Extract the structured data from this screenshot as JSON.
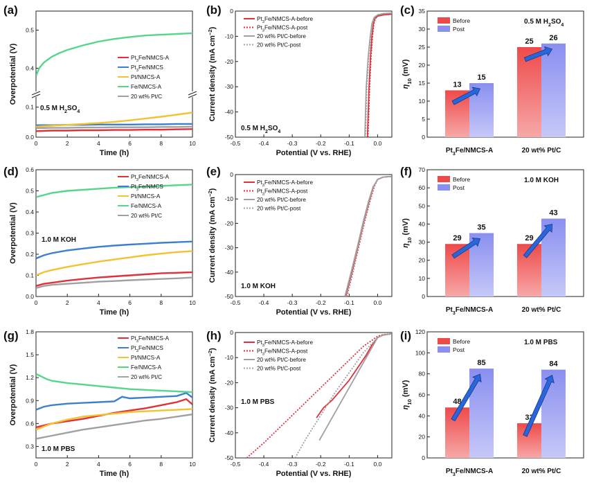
{
  "chart_data": [
    {
      "panel": "(a)",
      "type": "line",
      "xlabel": "Time (h)",
      "ylabel": "Overpotential (V)",
      "xlim": [
        0,
        10
      ],
      "xticks": [
        0,
        2,
        4,
        6,
        8,
        10
      ],
      "ylim": [
        0,
        0.55
      ],
      "yticks": [
        0.0,
        0.1,
        0.4,
        0.5
      ],
      "axis_break": "between 0.1 and 0.4",
      "condition": "0.5 M H2SO4",
      "series": [
        {
          "name": "Pt3Fe/NMCS-A",
          "color": "#e0303a",
          "x": [
            0,
            1,
            2,
            3,
            4,
            5,
            6,
            7,
            8,
            9,
            10
          ],
          "y": [
            0.02,
            0.022,
            0.022,
            0.023,
            0.023,
            0.024,
            0.024,
            0.025,
            0.025,
            0.026,
            0.027
          ]
        },
        {
          "name": "Pt3Fe/NMCS",
          "color": "#3a7fd0",
          "x": [
            0,
            1,
            2,
            3,
            4,
            5,
            6,
            7,
            8,
            9,
            10
          ],
          "y": [
            0.04,
            0.04,
            0.041,
            0.041,
            0.042,
            0.042,
            0.042,
            0.043,
            0.043,
            0.044,
            0.044
          ]
        },
        {
          "name": "Pt/NMCS-A",
          "color": "#f2c230",
          "x": [
            0,
            1,
            2,
            3,
            4,
            5,
            6,
            7,
            8,
            9,
            10
          ],
          "y": [
            0.035,
            0.038,
            0.041,
            0.044,
            0.047,
            0.051,
            0.056,
            0.062,
            0.068,
            0.075,
            0.082
          ]
        },
        {
          "name": "Fe/NMCS-A",
          "color": "#56d68a",
          "x": [
            0,
            0.2,
            0.5,
            1,
            1.5,
            2,
            3,
            4,
            5,
            6,
            7,
            8,
            9,
            10
          ],
          "y": [
            0.38,
            0.4,
            0.415,
            0.43,
            0.44,
            0.448,
            0.46,
            0.47,
            0.477,
            0.482,
            0.486,
            0.488,
            0.49,
            0.492
          ]
        },
        {
          "name": "20 wt% Pt/C",
          "color": "#a0a0a0",
          "x": [
            0,
            1,
            2,
            3,
            4,
            5,
            6,
            7,
            8,
            9,
            10
          ],
          "y": [
            0.03,
            0.031,
            0.031,
            0.032,
            0.032,
            0.033,
            0.033,
            0.033,
            0.034,
            0.034,
            0.035
          ]
        }
      ]
    },
    {
      "panel": "(b)",
      "type": "line",
      "xlabel": "Potential (V vs. RHE)",
      "ylabel": "Current density (mA cm⁻²)",
      "xlim": [
        -0.5,
        0.05
      ],
      "xticks": [
        -0.5,
        -0.4,
        -0.3,
        -0.2,
        -0.1,
        0.0
      ],
      "ylim": [
        -50,
        0
      ],
      "yticks": [
        -50,
        -40,
        -30,
        -20,
        -10,
        0
      ],
      "condition": "0.5 M H2SO4",
      "series": [
        {
          "name": "Pt3Fe/NMCS-A-before",
          "color": "#e0303a",
          "style": "solid",
          "x": [
            -0.036,
            -0.03,
            -0.025,
            -0.02,
            -0.015,
            -0.01,
            0.0,
            0.02,
            0.05
          ],
          "y": [
            -50,
            -30,
            -18,
            -10,
            -5,
            -3,
            -2,
            -1.5,
            -1.2
          ]
        },
        {
          "name": "Pt3Fe/NMCS-A-post",
          "color": "#e0303a",
          "style": "dotted",
          "x": [
            -0.034,
            -0.028,
            -0.023,
            -0.018,
            -0.013,
            -0.008,
            0.0,
            0.02,
            0.05
          ],
          "y": [
            -50,
            -30,
            -18,
            -10,
            -5,
            -3,
            -2,
            -1.5,
            -1.2
          ]
        },
        {
          "name": "20 wt% Pt/C-before",
          "color": "#a0a0a0",
          "style": "solid",
          "x": [
            -0.045,
            -0.04,
            -0.033,
            -0.026,
            -0.02,
            -0.012,
            0.0,
            0.02,
            0.05
          ],
          "y": [
            -50,
            -30,
            -18,
            -10,
            -5,
            -2.5,
            -1.5,
            -1,
            -0.8
          ]
        },
        {
          "name": "20 wt% Pt/C-post",
          "color": "#a0a0a0",
          "style": "dotted",
          "x": [
            -0.043,
            -0.038,
            -0.031,
            -0.024,
            -0.018,
            -0.01,
            0.0,
            0.02,
            0.05
          ],
          "y": [
            -50,
            -30,
            -18,
            -10,
            -5,
            -2.5,
            -1.5,
            -1,
            -0.8
          ]
        }
      ]
    },
    {
      "panel": "(c)",
      "type": "bar",
      "ylabel": "η10 (mV)",
      "ylim": [
        0,
        35
      ],
      "yticks": [
        0,
        5,
        10,
        15,
        20,
        25,
        30,
        35
      ],
      "condition": "0.5 M H2SO4",
      "categories": [
        "Pt3Fe/NMCS-A",
        "20 wt% Pt/C"
      ],
      "series": [
        {
          "name": "Before",
          "color": "#ee4a4a",
          "values": [
            13,
            25
          ]
        },
        {
          "name": "Post",
          "color": "#8a8ff0",
          "values": [
            15,
            26
          ]
        }
      ]
    },
    {
      "panel": "(d)",
      "type": "line",
      "xlabel": "Time (h)",
      "ylabel": "Overpotential (V)",
      "xlim": [
        0,
        10
      ],
      "xticks": [
        0,
        2,
        4,
        6,
        8,
        10
      ],
      "ylim": [
        0,
        0.6
      ],
      "yticks": [
        0.0,
        0.1,
        0.2,
        0.3,
        0.4,
        0.5,
        0.6
      ],
      "condition": "1.0 M KOH",
      "series": [
        {
          "name": "Pt3Fe/NMCS-A",
          "color": "#e0303a",
          "x": [
            0,
            0.5,
            1,
            2,
            3,
            4,
            5,
            6,
            7,
            8,
            9,
            10
          ],
          "y": [
            0.05,
            0.06,
            0.065,
            0.075,
            0.083,
            0.09,
            0.095,
            0.1,
            0.105,
            0.11,
            0.112,
            0.115
          ]
        },
        {
          "name": "Pt3Fe/NMCS",
          "color": "#3a7fd0",
          "x": [
            0,
            0.5,
            1,
            2,
            3,
            4,
            5,
            6,
            7,
            8,
            9,
            10
          ],
          "y": [
            0.18,
            0.195,
            0.205,
            0.218,
            0.227,
            0.235,
            0.241,
            0.246,
            0.25,
            0.254,
            0.257,
            0.26
          ]
        },
        {
          "name": "Pt/NMCS-A",
          "color": "#f2c230",
          "x": [
            0,
            0.5,
            1,
            2,
            3,
            4,
            5,
            6,
            7,
            8,
            9,
            10
          ],
          "y": [
            0.1,
            0.115,
            0.125,
            0.14,
            0.153,
            0.165,
            0.175,
            0.185,
            0.195,
            0.203,
            0.21,
            0.215
          ]
        },
        {
          "name": "Fe/NMCS-A",
          "color": "#56d68a",
          "x": [
            0,
            1,
            2,
            3,
            4,
            5,
            6,
            7,
            8,
            9,
            10
          ],
          "y": [
            0.47,
            0.49,
            0.5,
            0.505,
            0.51,
            0.515,
            0.518,
            0.52,
            0.523,
            0.527,
            0.53
          ]
        },
        {
          "name": "20 wt% Pt/C",
          "color": "#a0a0a0",
          "x": [
            0,
            0.5,
            1,
            2,
            3,
            4,
            5,
            6,
            7,
            8,
            9,
            10
          ],
          "y": [
            0.04,
            0.05,
            0.055,
            0.06,
            0.065,
            0.07,
            0.073,
            0.077,
            0.08,
            0.083,
            0.086,
            0.09
          ]
        }
      ]
    },
    {
      "panel": "(e)",
      "type": "line",
      "xlabel": "Potential (V vs. RHE)",
      "ylabel": "Current density (mA cm⁻²)",
      "xlim": [
        -0.5,
        0.05
      ],
      "xticks": [
        -0.5,
        -0.4,
        -0.3,
        -0.2,
        -0.1,
        0.0
      ],
      "ylim": [
        -50,
        0
      ],
      "yticks": [
        -50,
        -40,
        -30,
        -20,
        -10,
        0
      ],
      "condition": "1.0 M KOH",
      "series": [
        {
          "name": "Pt3Fe/NMCS-A-before",
          "color": "#e0303a",
          "style": "solid",
          "x": [
            -0.112,
            -0.09,
            -0.07,
            -0.05,
            -0.03,
            -0.015,
            0.0,
            0.02,
            0.05
          ],
          "y": [
            -50,
            -40,
            -30,
            -20,
            -11,
            -5,
            -2,
            -1,
            -0.8
          ]
        },
        {
          "name": "Pt3Fe/NMCS-A-post",
          "color": "#e0303a",
          "style": "dotted",
          "x": [
            -0.108,
            -0.087,
            -0.067,
            -0.047,
            -0.027,
            -0.012,
            0.0,
            0.02,
            0.05
          ],
          "y": [
            -50,
            -40,
            -30,
            -20,
            -11,
            -5,
            -2,
            -1,
            -0.8
          ]
        },
        {
          "name": "20 wt% Pt/C-before",
          "color": "#a0a0a0",
          "style": "solid",
          "x": [
            -0.115,
            -0.093,
            -0.072,
            -0.052,
            -0.032,
            -0.016,
            0.0,
            0.02,
            0.05
          ],
          "y": [
            -50,
            -40,
            -30,
            -20,
            -11,
            -5,
            -2,
            -1,
            -0.8
          ]
        },
        {
          "name": "20 wt% Pt/C-post",
          "color": "#a0a0a0",
          "style": "dotted",
          "x": [
            -0.11,
            -0.089,
            -0.069,
            -0.049,
            -0.029,
            -0.014,
            0.0,
            0.02,
            0.05
          ],
          "y": [
            -50,
            -40,
            -30,
            -20,
            -11,
            -5,
            -2,
            -1,
            -0.8
          ]
        }
      ]
    },
    {
      "panel": "(f)",
      "type": "bar",
      "ylabel": "η10 (mV)",
      "ylim": [
        0,
        70
      ],
      "yticks": [
        0,
        10,
        20,
        30,
        40,
        50,
        60,
        70
      ],
      "condition": "1.0 M KOH",
      "categories": [
        "Pt3Fe/NMCS-A",
        "20 wt% Pt/C"
      ],
      "series": [
        {
          "name": "Before",
          "color": "#ee4a4a",
          "values": [
            29,
            29
          ]
        },
        {
          "name": "Post",
          "color": "#8a8ff0",
          "values": [
            35,
            43
          ]
        }
      ]
    },
    {
      "panel": "(g)",
      "type": "line",
      "xlabel": "Time (h)",
      "ylabel": "Overpotential (V)",
      "xlim": [
        0,
        10
      ],
      "xticks": [
        0,
        2,
        4,
        6,
        8,
        10
      ],
      "ylim": [
        0.15,
        1.8
      ],
      "yticks": [
        0.3,
        0.6,
        0.9,
        1.2,
        1.5,
        1.8
      ],
      "condition": "1.0 M PBS",
      "series": [
        {
          "name": "Pt3Fe/NMCS-A",
          "color": "#e0303a",
          "x": [
            0,
            1,
            2,
            3,
            4,
            5,
            6,
            7,
            8,
            9,
            9.6,
            10
          ],
          "y": [
            0.55,
            0.6,
            0.63,
            0.66,
            0.7,
            0.74,
            0.77,
            0.8,
            0.84,
            0.88,
            0.92,
            0.85
          ]
        },
        {
          "name": "Pt3Fe/NMCS",
          "color": "#3a7fd0",
          "x": [
            0,
            0.5,
            1,
            2,
            3,
            4,
            5,
            5.5,
            6,
            7,
            8,
            9,
            9.6,
            10
          ],
          "y": [
            0.78,
            0.82,
            0.84,
            0.86,
            0.87,
            0.88,
            0.89,
            0.95,
            0.93,
            0.94,
            0.95,
            0.96,
            1.0,
            0.94
          ]
        },
        {
          "name": "Pt/NMCS-A",
          "color": "#f2c230",
          "x": [
            0,
            1,
            2,
            3,
            4,
            5,
            6,
            7,
            8,
            9,
            10
          ],
          "y": [
            0.52,
            0.6,
            0.65,
            0.69,
            0.71,
            0.73,
            0.75,
            0.76,
            0.77,
            0.78,
            0.79
          ]
        },
        {
          "name": "Fe/NMCS-A",
          "color": "#56d68a",
          "x": [
            0,
            0.3,
            0.7,
            1,
            2,
            3,
            4,
            5,
            6,
            7,
            8,
            9,
            10
          ],
          "y": [
            1.25,
            1.22,
            1.18,
            1.16,
            1.13,
            1.11,
            1.09,
            1.07,
            1.05,
            1.04,
            1.03,
            1.02,
            1.01
          ]
        },
        {
          "name": "20 wt% Pt/C",
          "color": "#a0a0a0",
          "x": [
            0,
            1,
            2,
            3,
            4,
            5,
            6,
            7,
            8,
            9,
            10
          ],
          "y": [
            0.4,
            0.44,
            0.48,
            0.52,
            0.55,
            0.58,
            0.61,
            0.64,
            0.66,
            0.69,
            0.72
          ]
        }
      ]
    },
    {
      "panel": "(h)",
      "type": "line",
      "xlabel": "Potential (V vs. RHE)",
      "ylabel": "Current density (mA cm⁻²)",
      "xlim": [
        -0.5,
        0.05
      ],
      "xticks": [
        -0.5,
        -0.4,
        -0.3,
        -0.2,
        -0.1,
        0.0
      ],
      "ylim": [
        -50,
        0
      ],
      "yticks": [
        -50,
        -40,
        -30,
        -20,
        -10,
        0
      ],
      "condition": "1.0 M PBS",
      "series": [
        {
          "name": "Pt3Fe/NMCS-A-before",
          "color": "#e0303a",
          "style": "solid",
          "x": [
            -0.215,
            -0.19,
            -0.16,
            -0.13,
            -0.1,
            -0.07,
            -0.04,
            -0.02,
            0.0,
            0.02,
            0.05
          ],
          "y": [
            -34,
            -30,
            -27,
            -23,
            -19,
            -14,
            -9,
            -5,
            -2,
            -1,
            -0.5
          ]
        },
        {
          "name": "Pt3Fe/NMCS-A-post",
          "color": "#e0303a",
          "style": "dotted",
          "x": [
            -0.46,
            -0.4,
            -0.3,
            -0.2,
            -0.1,
            -0.05,
            0.0,
            0.02,
            0.05
          ],
          "y": [
            -50,
            -44,
            -33,
            -22,
            -11,
            -5.5,
            -1.5,
            -0.8,
            -0.5
          ]
        },
        {
          "name": "20 wt% Pt/C-before",
          "color": "#a0a0a0",
          "style": "solid",
          "x": [
            -0.205,
            -0.18,
            -0.15,
            -0.12,
            -0.09,
            -0.06,
            -0.03,
            0.0,
            0.02,
            0.05
          ],
          "y": [
            -43,
            -38,
            -32,
            -26,
            -20,
            -14,
            -8,
            -2,
            -1,
            -0.5
          ]
        },
        {
          "name": "20 wt% Pt/C-post",
          "color": "#a0a0a0",
          "style": "dotted",
          "x": [
            -0.29,
            -0.25,
            -0.2,
            -0.15,
            -0.1,
            -0.05,
            0.0,
            0.02,
            0.05
          ],
          "y": [
            -50,
            -42,
            -33,
            -24,
            -16,
            -8,
            -2,
            -1,
            -0.5
          ]
        }
      ]
    },
    {
      "panel": "(i)",
      "type": "bar",
      "ylabel": "η10 (mV)",
      "ylim": [
        0,
        120
      ],
      "yticks": [
        0,
        20,
        40,
        60,
        80,
        100,
        120
      ],
      "condition": "1.0 M PBS",
      "categories": [
        "Pt3Fe/NMCS-A",
        "20 wt% Pt/C"
      ],
      "series": [
        {
          "name": "Before",
          "color": "#ee4a4a",
          "values": [
            48,
            33
          ]
        },
        {
          "name": "Post",
          "color": "#8a8ff0",
          "values": [
            85,
            84
          ]
        }
      ]
    }
  ]
}
